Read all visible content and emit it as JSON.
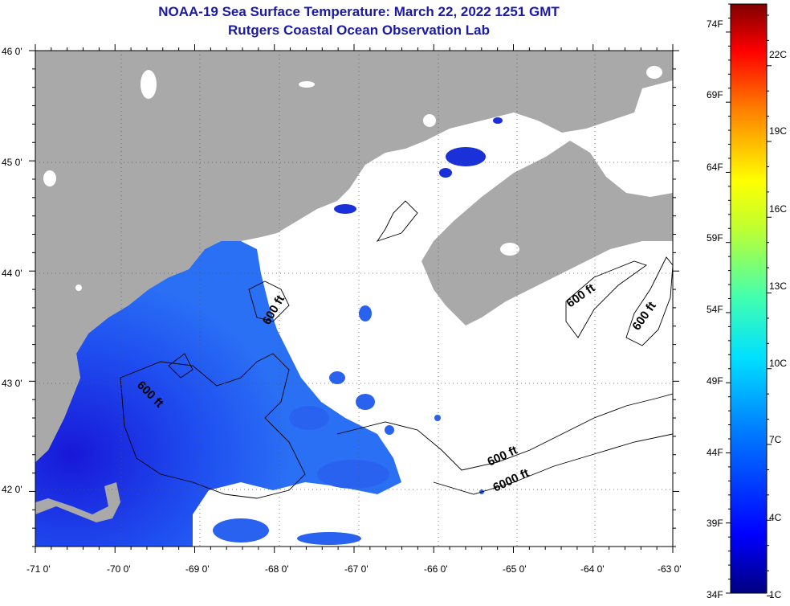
{
  "title": {
    "line1": "NOAA-19 Sea Surface Temperature:  March 22, 2022 1251 GMT",
    "line2": "Rutgers Coastal Ocean Observation Lab"
  },
  "map": {
    "lat_labels": [
      "46 0'",
      "45 0'",
      "44 0'",
      "43 0'",
      "42 0'"
    ],
    "lon_labels": [
      "-71 0'",
      "-70 0'",
      "-69 0'",
      "-68 0'",
      "-67 0'",
      "-66 0'",
      "-65 0'",
      "-64 0'",
      "-63 0'"
    ],
    "lat_range": [
      41.5,
      46.0
    ],
    "lon_range": [
      -71.0,
      -63.0
    ],
    "colors": {
      "land": "#a9a9a9",
      "cloud": "#ffffff",
      "water_warm": "#1f5cf0",
      "water_cold": "#1010d0",
      "contour": "#000000"
    },
    "contour_labels": [
      {
        "text": "600 ft",
        "id": "iso-1"
      },
      {
        "text": "600 ft",
        "id": "iso-2"
      },
      {
        "text": "600 ft",
        "id": "iso-3"
      },
      {
        "text": "600 ft",
        "id": "iso-4"
      },
      {
        "text": "600 ft",
        "id": "iso-5"
      },
      {
        "text": "6000 ft",
        "id": "iso-6"
      }
    ]
  },
  "colorbar": {
    "fahrenheit": [
      "74F",
      "69F",
      "64F",
      "59F",
      "54F",
      "49F",
      "44F",
      "39F",
      "34F"
    ],
    "celsius": [
      "22C",
      "19C",
      "16C",
      "13C",
      "10C",
      "7C",
      "4C",
      "1C"
    ],
    "range_f": [
      34,
      76
    ]
  }
}
